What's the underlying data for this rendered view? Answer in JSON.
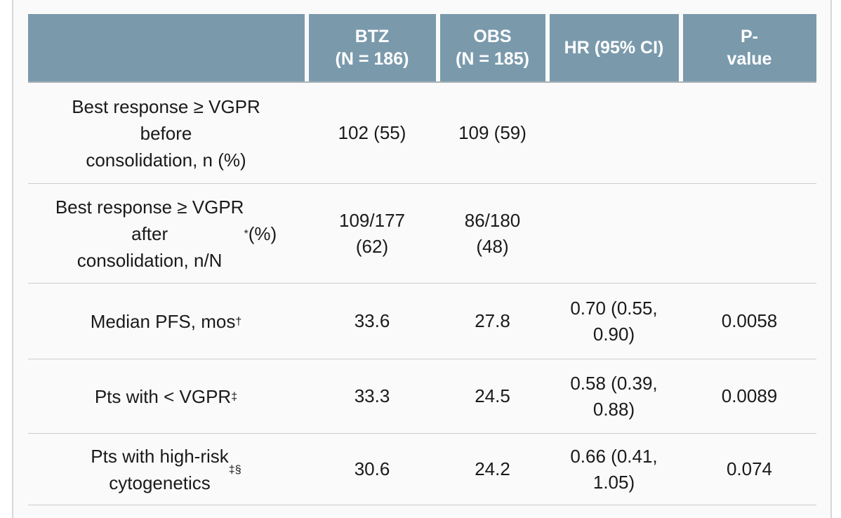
{
  "colors": {
    "header_bg": "#7a9aac",
    "header_text": "#ffffff",
    "card_bg": "#fafafa",
    "divider": "#cccccc",
    "header_bottom_border": "#aab1b5",
    "body_text": "#1a1a1a",
    "page_edge_border": "#d6d6d6"
  },
  "table": {
    "header": {
      "col0": "",
      "col1": "BTZ\n(N = 186)",
      "col2": "OBS\n(N = 185)",
      "col3": "HR (95% CI)",
      "col4": "P-\nvalue"
    },
    "rows": [
      {
        "label": {
          "pre": "Best response ≥ VGPR\nbefore\nconsolidation, n (%)",
          "sup": "",
          "post": ""
        },
        "btz": "102 (55)",
        "obs": "109 (59)",
        "hr": "",
        "p": ""
      },
      {
        "label": {
          "pre": "Best response ≥ VGPR\nafter\nconsolidation, n/N",
          "sup": "*",
          "post": " (%)"
        },
        "btz": "109/177\n(62)",
        "obs": "86/180\n(48)",
        "hr": "",
        "p": ""
      },
      {
        "label": {
          "pre": "Median PFS, mos",
          "sup": "†",
          "post": ""
        },
        "btz": "33.6",
        "obs": "27.8",
        "hr": "0.70 (0.55,\n0.90)",
        "p": "0.0058"
      },
      {
        "label": {
          "pre": "Pts with < VGPR",
          "sup": "‡",
          "post": ""
        },
        "btz": "33.3",
        "obs": "24.5",
        "hr": "0.58 (0.39,\n0.88)",
        "p": "0.0089"
      },
      {
        "label": {
          "pre": "Pts with high-risk\ncytogenetics",
          "sup": "‡§",
          "post": ""
        },
        "btz": "30.6",
        "obs": "24.2",
        "hr": "0.66 (0.41,\n1.05)",
        "p": "0.074"
      }
    ]
  },
  "chart_data": {
    "type": "table",
    "title": "",
    "columns": [
      "",
      "BTZ (N = 186)",
      "OBS (N = 185)",
      "HR (95% CI)",
      "P-value"
    ],
    "rows": [
      [
        "Best response ≥ VGPR before consolidation, n (%)",
        "102 (55)",
        "109 (59)",
        "",
        ""
      ],
      [
        "Best response ≥ VGPR after consolidation, n/N* (%)",
        "109/177 (62)",
        "86/180 (48)",
        "",
        ""
      ],
      [
        "Median PFS, mos†",
        "33.6",
        "27.8",
        "0.70 (0.55, 0.90)",
        "0.0058"
      ],
      [
        "Pts with < VGPR‡",
        "33.3",
        "24.5",
        "0.58 (0.39, 0.88)",
        "0.0089"
      ],
      [
        "Pts with high-risk cytogenetics‡§",
        "30.6",
        "24.2",
        "0.66 (0.41, 1.05)",
        "0.074"
      ]
    ]
  }
}
